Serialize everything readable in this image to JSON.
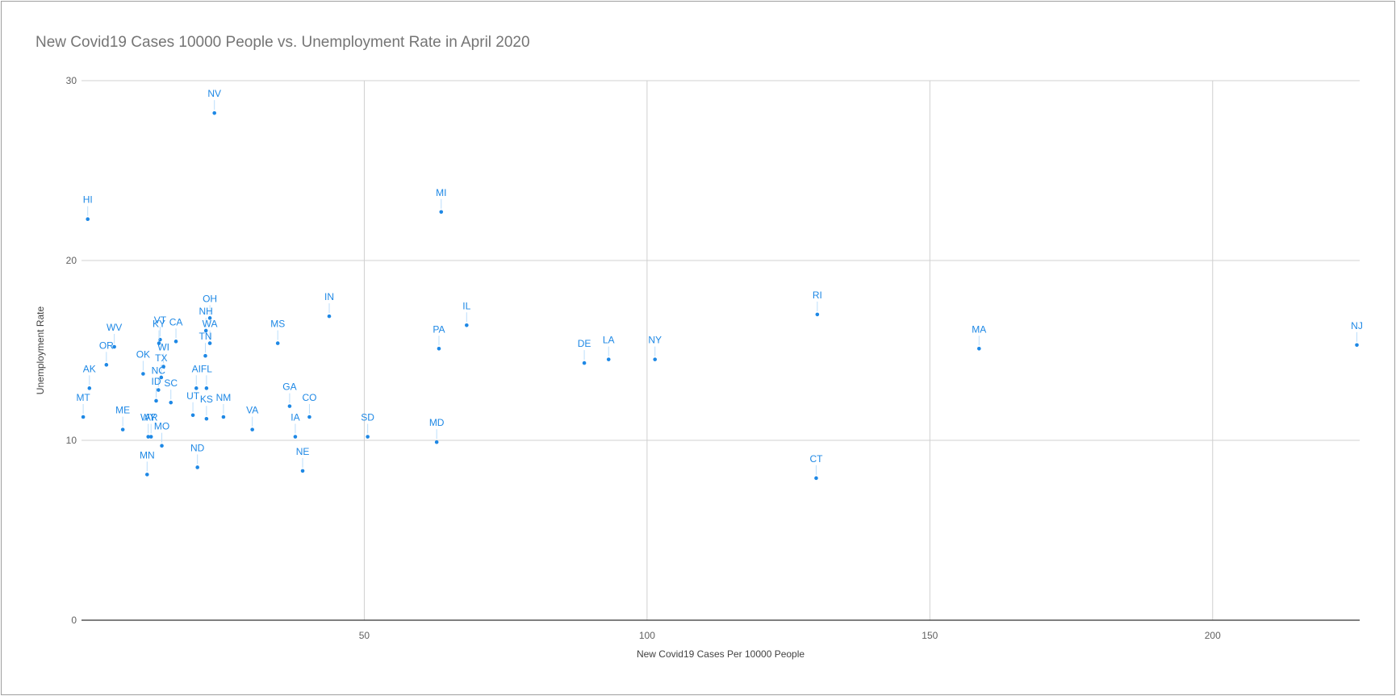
{
  "chart_data": {
    "type": "scatter",
    "title": "New Covid19 Cases 10000 People vs. Unemployment Rate in April 2020",
    "xlabel": "New Covid19 Cases Per 10000 People",
    "ylabel": "Unemployment Rate",
    "xlim": [
      0,
      226
    ],
    "ylim": [
      0,
      30
    ],
    "xticks": [
      50,
      100,
      150,
      200
    ],
    "yticks": [
      0,
      10,
      20,
      30
    ],
    "grid": true,
    "legend": "none",
    "point_color": "#1e88e5",
    "points": [
      {
        "label": "NV",
        "x": 23.5,
        "y": 28.2
      },
      {
        "label": "HI",
        "x": 1.1,
        "y": 22.3
      },
      {
        "label": "MI",
        "x": 63.6,
        "y": 22.7
      },
      {
        "label": "OH",
        "x": 22.7,
        "y": 16.8
      },
      {
        "label": "NH",
        "x": 22.0,
        "y": 16.1
      },
      {
        "label": "IN",
        "x": 43.8,
        "y": 16.9
      },
      {
        "label": "IL",
        "x": 68.1,
        "y": 16.4
      },
      {
        "label": "RI",
        "x": 130.1,
        "y": 17.0
      },
      {
        "label": "NJ",
        "x": 225.5,
        "y": 15.3
      },
      {
        "label": "MA",
        "x": 158.7,
        "y": 15.1
      },
      {
        "label": "WV",
        "x": 5.8,
        "y": 15.2
      },
      {
        "label": "VT",
        "x": 13.9,
        "y": 15.6
      },
      {
        "label": "KY",
        "x": 13.7,
        "y": 15.4
      },
      {
        "label": "CA",
        "x": 16.7,
        "y": 15.5
      },
      {
        "label": "WA",
        "x": 22.7,
        "y": 15.4
      },
      {
        "label": "MS",
        "x": 34.7,
        "y": 15.4
      },
      {
        "label": "PA",
        "x": 63.2,
        "y": 15.1
      },
      {
        "label": "OR",
        "x": 4.4,
        "y": 14.2
      },
      {
        "label": "WI",
        "x": 14.5,
        "y": 14.1
      },
      {
        "label": "TN",
        "x": 21.9,
        "y": 14.7
      },
      {
        "label": "DE",
        "x": 88.9,
        "y": 14.3
      },
      {
        "label": "LA",
        "x": 93.2,
        "y": 14.5
      },
      {
        "label": "NY",
        "x": 101.4,
        "y": 14.5
      },
      {
        "label": "OK",
        "x": 10.9,
        "y": 13.7
      },
      {
        "label": "TX",
        "x": 14.1,
        "y": 13.5
      },
      {
        "label": "AK",
        "x": 1.4,
        "y": 12.9
      },
      {
        "label": "AI",
        "x": 20.3,
        "y": 12.9
      },
      {
        "label": "FL",
        "x": 22.1,
        "y": 12.9
      },
      {
        "label": "NC",
        "x": 13.6,
        "y": 12.8
      },
      {
        "label": "SC",
        "x": 15.8,
        "y": 12.1
      },
      {
        "label": "ID",
        "x": 13.2,
        "y": 12.2
      },
      {
        "label": "GA",
        "x": 36.8,
        "y": 11.9
      },
      {
        "label": "MT",
        "x": 0.3,
        "y": 11.3
      },
      {
        "label": "KS",
        "x": 22.1,
        "y": 11.2
      },
      {
        "label": "NM",
        "x": 25.1,
        "y": 11.3
      },
      {
        "label": "CO",
        "x": 40.3,
        "y": 11.3
      },
      {
        "label": "ME",
        "x": 7.3,
        "y": 10.6
      },
      {
        "label": "VA",
        "x": 30.2,
        "y": 10.6
      },
      {
        "label": "AR",
        "x": 12.3,
        "y": 10.2
      },
      {
        "label": "MO",
        "x": 14.2,
        "y": 9.7
      },
      {
        "label": "UT",
        "x": 19.7,
        "y": 11.4
      },
      {
        "label": "IA",
        "x": 37.8,
        "y": 10.2
      },
      {
        "label": "SD",
        "x": 50.6,
        "y": 10.2
      },
      {
        "label": "MD",
        "x": 62.8,
        "y": 9.9
      },
      {
        "label": "WY",
        "x": 11.8,
        "y": 10.2
      },
      {
        "label": "MN",
        "x": 11.6,
        "y": 8.1
      },
      {
        "label": "ND",
        "x": 20.5,
        "y": 8.5
      },
      {
        "label": "NE",
        "x": 39.1,
        "y": 8.3
      },
      {
        "label": "CT",
        "x": 129.9,
        "y": 7.9
      }
    ]
  }
}
